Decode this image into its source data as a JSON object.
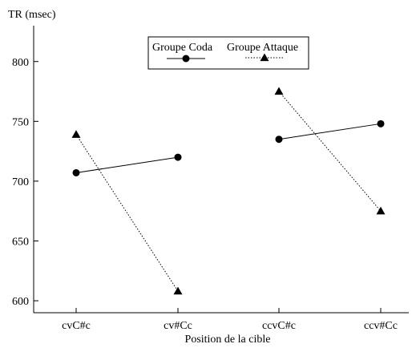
{
  "chart_data": {
    "type": "line",
    "title": "",
    "ylabel": "TR (msec)",
    "xlabel": "Position de la cible",
    "categories": [
      "cvC#c",
      "cv#Cc",
      "ccvC#c",
      "ccv#Cc"
    ],
    "ylim": [
      590,
      830
    ],
    "yticks": [
      600,
      650,
      700,
      750,
      800
    ],
    "grid": false,
    "legend_position": "top-center",
    "segments": [
      [
        0,
        1
      ],
      [
        2,
        3
      ]
    ],
    "series": [
      {
        "name": "Groupe Coda",
        "marker": "circle",
        "line_style": "solid",
        "color": "#000000",
        "values": [
          707,
          720,
          735,
          748
        ]
      },
      {
        "name": "Groupe Attaque",
        "marker": "triangle",
        "line_style": "dotted",
        "color": "#000000",
        "values": [
          739,
          608,
          775,
          675
        ]
      }
    ]
  }
}
